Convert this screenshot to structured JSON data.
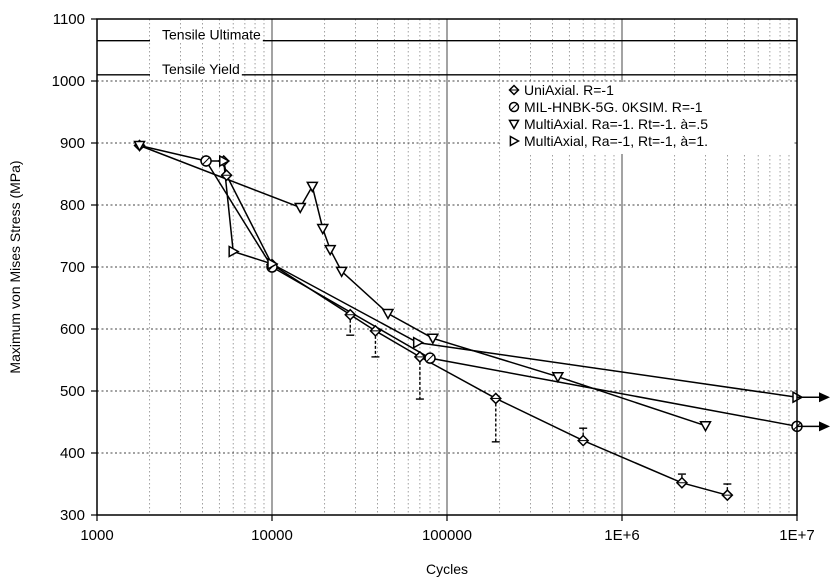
{
  "chart_data": {
    "type": "scatter",
    "title": "",
    "xlabel": "Cycles",
    "ylabel": "Maximum von Mises Stress (MPa)",
    "xscale": "log",
    "xlim": [
      1000,
      10000000
    ],
    "ylim": [
      300,
      1100
    ],
    "x_ticks": [
      1000,
      10000,
      100000,
      1000000,
      10000000
    ],
    "x_tick_labels": [
      "1000",
      "10000",
      "100000",
      "1E+6",
      "1E+7"
    ],
    "y_ticks": [
      300,
      400,
      500,
      600,
      700,
      800,
      900,
      1000,
      1100
    ],
    "y_tick_labels": [
      "300",
      "400",
      "500",
      "600",
      "700",
      "800",
      "900",
      "1000",
      "1100"
    ],
    "grid": true,
    "legend_position": "top-right",
    "reference_lines": [
      {
        "label": "Tensile Ultimate",
        "y": 1065
      },
      {
        "label": "Tensile Yield",
        "y": 1010
      }
    ],
    "series": [
      {
        "name": "UniAxial. R=-1",
        "marker": "diamond",
        "points": [
          [
            1750,
            896
          ],
          [
            4200,
            871
          ],
          [
            5300,
            871
          ],
          [
            5500,
            848
          ],
          [
            10000,
            704
          ],
          [
            28000,
            623
          ],
          [
            39000,
            597
          ],
          [
            70000,
            555
          ],
          [
            190000,
            488
          ],
          [
            600000,
            420
          ],
          [
            2200000,
            352
          ],
          [
            4000000,
            332
          ]
        ]
      },
      {
        "name": "MIL-HNBK-5G. 0KSIM. R=-1",
        "marker": "circle",
        "points": [
          [
            4200,
            871
          ],
          [
            10000,
            700
          ],
          [
            80000,
            553
          ],
          [
            10000000,
            443
          ]
        ]
      },
      {
        "name": "MultiAxial. Ra=-1. Rt=-1. à=.5",
        "marker": "triangle-down",
        "points": [
          [
            1750,
            896
          ],
          [
            14500,
            796
          ],
          [
            17000,
            830
          ],
          [
            19500,
            762
          ],
          [
            21500,
            728
          ],
          [
            25000,
            693
          ],
          [
            46000,
            625
          ],
          [
            83000,
            585
          ],
          [
            430000,
            523
          ],
          [
            3000000,
            444
          ]
        ]
      },
      {
        "name": "MultiAxial, Ra=-1, Rt=-1, à=1.",
        "marker": "triangle-right",
        "points": [
          [
            5300,
            871
          ],
          [
            6000,
            725
          ],
          [
            10000,
            705
          ],
          [
            68000,
            578
          ],
          [
            10000000,
            490
          ]
        ]
      }
    ],
    "error_bars": [
      {
        "x": 28000,
        "from": 623,
        "to": 590
      },
      {
        "x": 39000,
        "from": 597,
        "to": 555
      },
      {
        "x": 70000,
        "from": 555,
        "to": 487
      },
      {
        "x": 190000,
        "from": 488,
        "to": 418
      },
      {
        "x": 600000,
        "from": 420,
        "to": 440
      },
      {
        "x": 2200000,
        "from": 352,
        "to": 366
      },
      {
        "x": 4000000,
        "from": 332,
        "to": 350
      }
    ],
    "runout_arrows": [
      {
        "x": 10000000,
        "y": 490
      },
      {
        "x": 10000000,
        "y": 443
      }
    ]
  }
}
